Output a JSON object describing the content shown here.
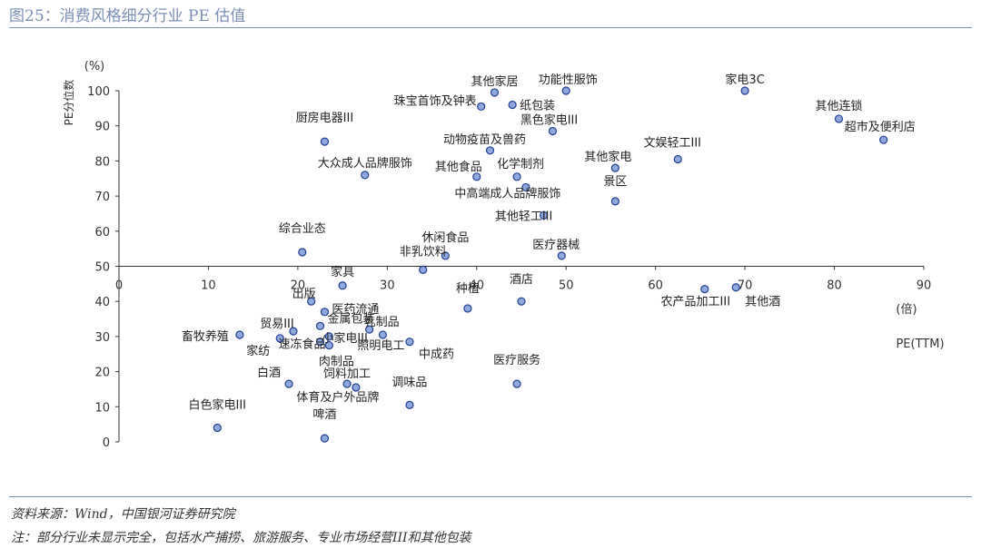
{
  "title": "图25：消费风格细分行业 PE 估值",
  "source": "资料来源：Wind，中国银河证券研究院",
  "note": "注：部分行业未显示完全，包括水产捕捞、旅游服务、专业市场经营III和其他包装",
  "chart_data": {
    "type": "scatter",
    "title": "",
    "xlabel": "PE(TTM)",
    "xunit": "(倍)",
    "ylabel": "PE分位数",
    "yunit": "(%)",
    "xlim": [
      0,
      90
    ],
    "ylim": [
      0,
      100
    ],
    "xticks": [
      0,
      10,
      20,
      30,
      40,
      50,
      60,
      70,
      80,
      90
    ],
    "yticks": [
      0,
      10,
      20,
      30,
      40,
      50,
      60,
      70,
      80,
      90,
      100
    ],
    "grid": false,
    "colors": {
      "marker_fill": "#8fa9df",
      "marker_stroke": "#1f3f8f",
      "axis": "#333333"
    },
    "points": [
      {
        "label": "其他家居",
        "x": 42.0,
        "y": 99.5
      },
      {
        "label": "功能性服饰",
        "x": 50.0,
        "y": 100
      },
      {
        "label": "家电3C",
        "x": 70.0,
        "y": 100
      },
      {
        "label": "珠宝首饰及钟表",
        "x": 40.5,
        "y": 95.5
      },
      {
        "label": "纸包装",
        "x": 44.0,
        "y": 96
      },
      {
        "label": "其他连锁",
        "x": 80.5,
        "y": 92
      },
      {
        "label": "厨房电器III",
        "x": 23.0,
        "y": 85.5
      },
      {
        "label": "黑色家电III",
        "x": 48.5,
        "y": 88.5
      },
      {
        "label": "超市及便利店",
        "x": 85.5,
        "y": 86
      },
      {
        "label": "动物疫苗及兽药",
        "x": 41.5,
        "y": 83
      },
      {
        "label": "文娱轻工III",
        "x": 62.5,
        "y": 80.5
      },
      {
        "label": "其他家电",
        "x": 55.5,
        "y": 78
      },
      {
        "label": "大众成人品牌服饰",
        "x": 27.5,
        "y": 76
      },
      {
        "label": "其他食品",
        "x": 40.0,
        "y": 75.5
      },
      {
        "label": "化学制剂",
        "x": 44.5,
        "y": 75.5
      },
      {
        "label": "中高端成人品牌服饰",
        "x": 45.5,
        "y": 72.5
      },
      {
        "label": "景区",
        "x": 55.5,
        "y": 68.5
      },
      {
        "label": "其他轻工III",
        "x": 47.5,
        "y": 64.5
      },
      {
        "label": "综合业态",
        "x": 20.5,
        "y": 54
      },
      {
        "label": "休闲食品",
        "x": 36.5,
        "y": 53
      },
      {
        "label": "医疗器械",
        "x": 49.5,
        "y": 53
      },
      {
        "label": "非乳饮料",
        "x": 34.0,
        "y": 49
      },
      {
        "label": "家具",
        "x": 25.0,
        "y": 44.5
      },
      {
        "label": "农产品加工III",
        "x": 65.5,
        "y": 43.5
      },
      {
        "label": "其他酒",
        "x": 69.0,
        "y": 44
      },
      {
        "label": "出版",
        "x": 21.5,
        "y": 40
      },
      {
        "label": "酒店",
        "x": 45.0,
        "y": 40
      },
      {
        "label": "种植",
        "x": 39.0,
        "y": 38
      },
      {
        "label": "医药流通",
        "x": 23.0,
        "y": 37
      },
      {
        "label": "金属包装",
        "x": 22.5,
        "y": 33
      },
      {
        "label": "乳制品",
        "x": 28.0,
        "y": 32
      },
      {
        "label": "贸易III",
        "x": 19.5,
        "y": 31.5
      },
      {
        "label": "小家电III",
        "x": 23.5,
        "y": 30
      },
      {
        "label": "畜牧养殖",
        "x": 13.5,
        "y": 30.5
      },
      {
        "label": "照明电工",
        "x": 29.5,
        "y": 30.5
      },
      {
        "label": "家纺",
        "x": 18.0,
        "y": 29.5
      },
      {
        "label": "速冻食品",
        "x": 22.5,
        "y": 28.5
      },
      {
        "label": "肉制品",
        "x": 23.5,
        "y": 27.5
      },
      {
        "label": "中成药",
        "x": 32.5,
        "y": 28.5
      },
      {
        "label": "饲料加工",
        "x": 25.5,
        "y": 16.5
      },
      {
        "label": "白酒",
        "x": 19.0,
        "y": 16.5
      },
      {
        "label": "体育及户外品牌",
        "x": 26.5,
        "y": 15.5
      },
      {
        "label": "医疗服务",
        "x": 44.5,
        "y": 16.5
      },
      {
        "label": "调味品",
        "x": 32.5,
        "y": 10.5
      },
      {
        "label": "白色家电III",
        "x": 11.0,
        "y": 4
      },
      {
        "label": "啤酒",
        "x": 23.0,
        "y": 1
      }
    ]
  }
}
